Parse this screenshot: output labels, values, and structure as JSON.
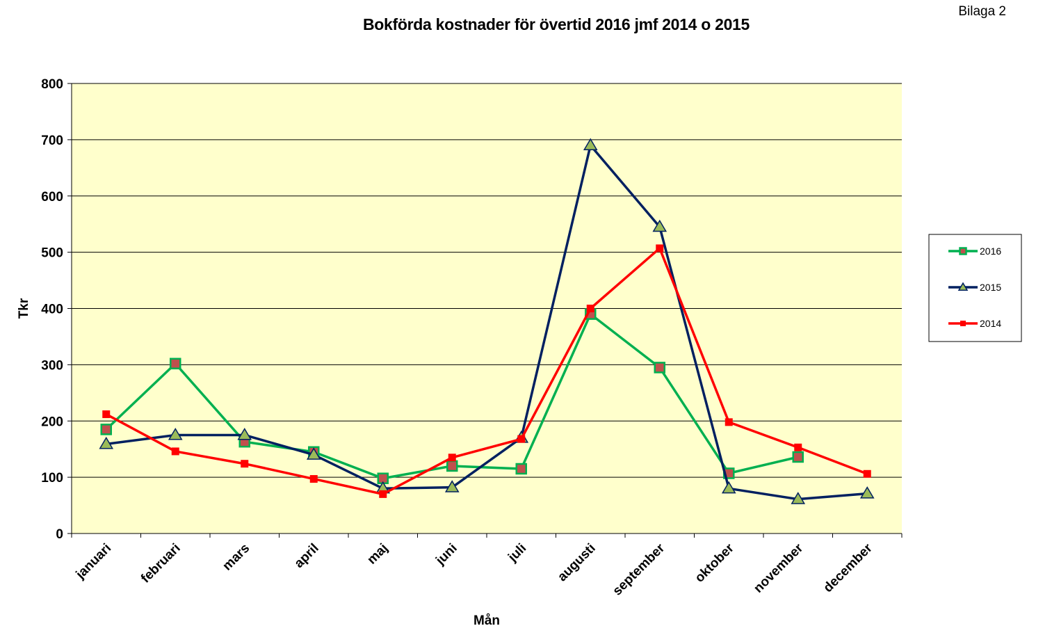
{
  "header": {
    "title": "Bokförda kostnader för övertid 2016 jmf 2014 o 2015",
    "corner_label": "Bilaga 2"
  },
  "chart_data": {
    "type": "line",
    "title": "Bokförda kostnader för övertid 2016 jmf 2014 o 2015",
    "xlabel": "Mån",
    "ylabel": "Tkr",
    "ylim": [
      0,
      800
    ],
    "yticks": [
      0,
      100,
      200,
      300,
      400,
      500,
      600,
      700,
      800
    ],
    "grid": true,
    "legend_position": "right",
    "plot_background": "#ffffcc",
    "categories": [
      "januari",
      "februari",
      "mars",
      "april",
      "maj",
      "juni",
      "juli",
      "augusti",
      "september",
      "oktober",
      "november",
      "december"
    ],
    "series": [
      {
        "name": "2016",
        "color": "#00b050",
        "marker": "square",
        "marker_fill": "#c0504d",
        "values": [
          185,
          302,
          163,
          145,
          98,
          120,
          115,
          390,
          295,
          107,
          136,
          null
        ]
      },
      {
        "name": "2015",
        "color": "#002060",
        "marker": "triangle",
        "marker_fill": "#9bbb59",
        "values": [
          159,
          175,
          175,
          140,
          80,
          82,
          170,
          690,
          545,
          80,
          61,
          71
        ]
      },
      {
        "name": "2014",
        "color": "#ff0000",
        "marker": "square",
        "marker_fill": "#ff0000",
        "values": [
          212,
          146,
          124,
          97,
          70,
          135,
          168,
          400,
          507,
          198,
          153,
          106
        ]
      }
    ]
  }
}
